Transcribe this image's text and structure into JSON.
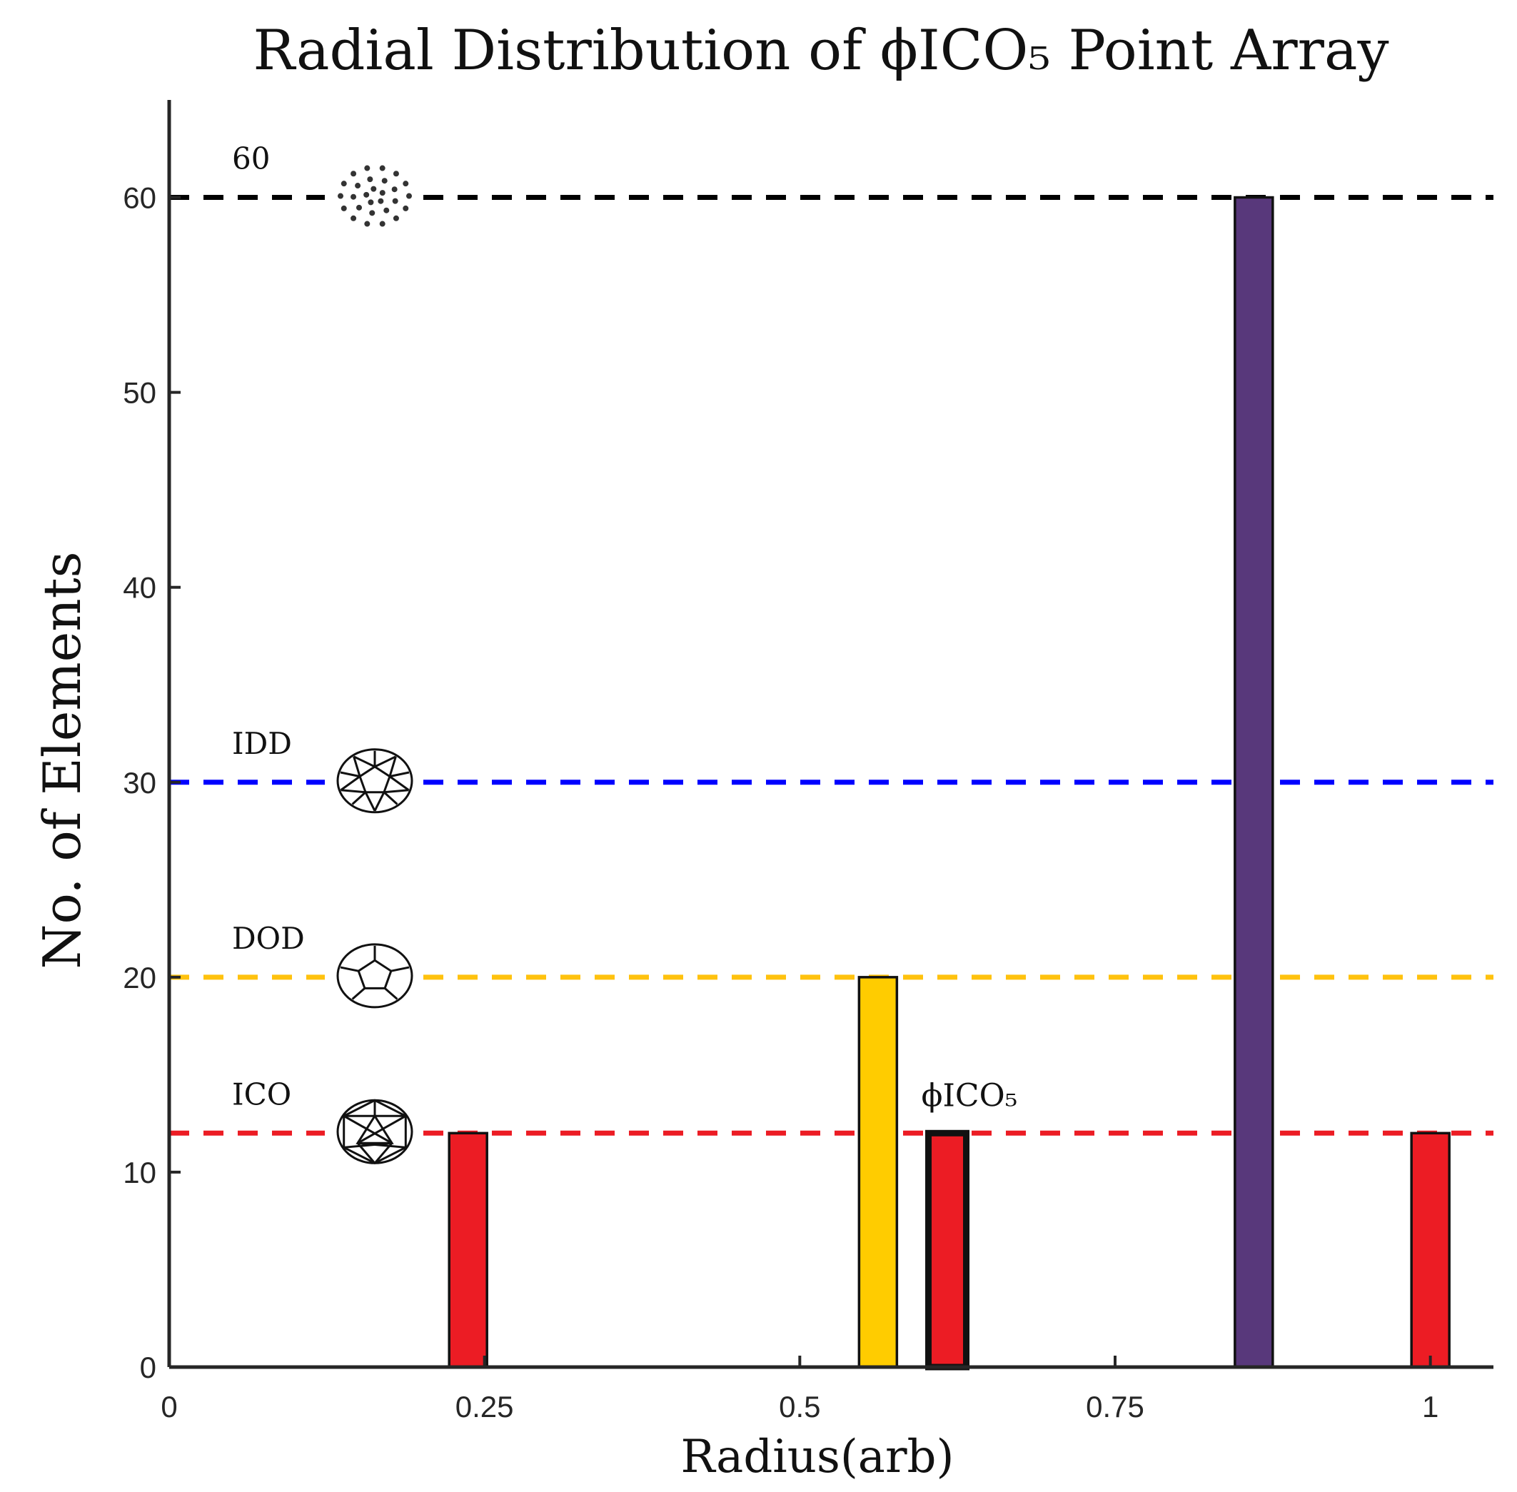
{
  "chart_data": {
    "type": "bar",
    "title": "Radial Distribution of ϕICO₅ Point Array",
    "xlabel": "Radius(arb)",
    "ylabel": "No. of Elements",
    "xlim": [
      0,
      1.05
    ],
    "ylim": [
      0,
      65
    ],
    "xticks": [
      {
        "value": 0,
        "label": "0"
      },
      {
        "value": 0.25,
        "label": "0.25"
      },
      {
        "value": 0.5,
        "label": "0.5"
      },
      {
        "value": 0.75,
        "label": "0.75"
      },
      {
        "value": 1,
        "label": "1"
      }
    ],
    "yticks": [
      {
        "value": 0,
        "label": "0"
      },
      {
        "value": 10,
        "label": "10"
      },
      {
        "value": 20,
        "label": "20"
      },
      {
        "value": 30,
        "label": "30"
      },
      {
        "value": 40,
        "label": "40"
      },
      {
        "value": 50,
        "label": "50"
      },
      {
        "value": 60,
        "label": "60"
      }
    ],
    "bars": [
      {
        "x": 0.237,
        "value": 12,
        "color": "#ec1c24",
        "highlight": false
      },
      {
        "x": 0.562,
        "value": 20,
        "color": "#ffcc00",
        "highlight": false
      },
      {
        "x": 0.617,
        "value": 12,
        "color": "#ec1c24",
        "highlight": true,
        "annotation": "ϕICO₅"
      },
      {
        "x": 0.86,
        "value": 60,
        "color": "#58387b",
        "highlight": false
      },
      {
        "x": 1.0,
        "value": 12,
        "color": "#ec1c24",
        "highlight": false
      }
    ],
    "bar_width": 0.03,
    "reference_lines": [
      {
        "label": "60",
        "value": 60,
        "color": "#000000",
        "icon": "point-cloud-icon"
      },
      {
        "label": "IDD",
        "value": 30,
        "color": "#0000ff",
        "icon": "icosidodecahedron-icon"
      },
      {
        "label": "DOD",
        "value": 20,
        "color": "#ffc20e",
        "icon": "dodecahedron-icon"
      },
      {
        "label": "ICO",
        "value": 12,
        "color": "#ec1c24",
        "icon": "icosahedron-icon"
      }
    ],
    "grid": false
  }
}
